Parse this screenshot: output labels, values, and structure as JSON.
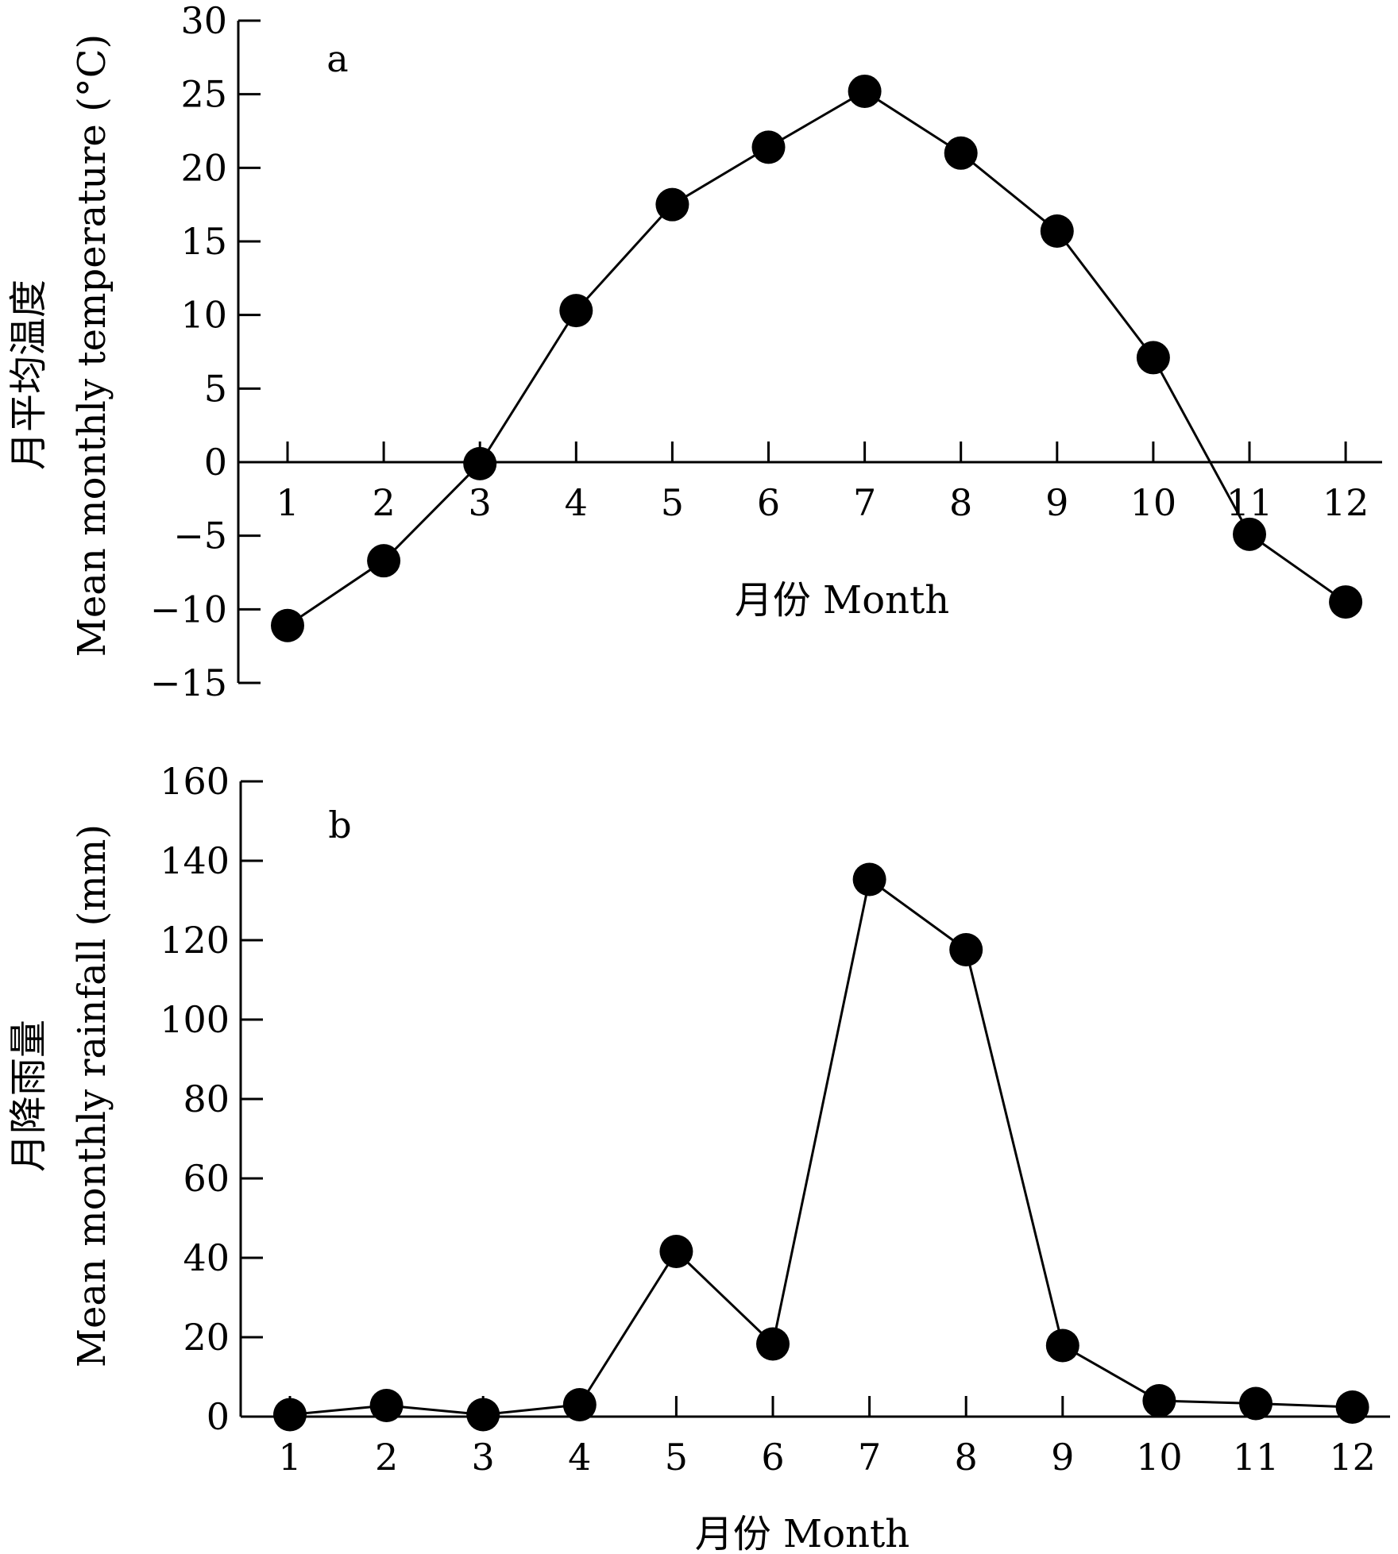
{
  "chart_data": [
    {
      "type": "line",
      "panel_label": "a",
      "categories": [
        "1",
        "2",
        "3",
        "4",
        "5",
        "6",
        "7",
        "8",
        "9",
        "10",
        "11",
        "12"
      ],
      "x": [
        1,
        2,
        3,
        4,
        5,
        6,
        7,
        8,
        9,
        10,
        11,
        12
      ],
      "values": [
        -11.1,
        -6.7,
        -0.1,
        10.3,
        17.5,
        21.4,
        25.2,
        21.0,
        15.7,
        7.1,
        -4.9,
        -9.5
      ],
      "ylabel_cn": "月平均温度",
      "ylabel": "Mean monthly temperature (°C)",
      "xlabel": "月份 Month",
      "ylim": [
        -15,
        30
      ],
      "yticks": [
        "30",
        "25",
        "20",
        "15",
        "10",
        "5",
        "0",
        "−5",
        "−10",
        "−15"
      ],
      "ytick_values": [
        30,
        25,
        20,
        15,
        10,
        5,
        0,
        -5,
        -10,
        -15
      ],
      "x_axis_at": 0,
      "grid": false,
      "legend": "none",
      "marker": "filled-circle",
      "color": "#000000"
    },
    {
      "type": "line",
      "panel_label": "b",
      "categories": [
        "1",
        "2",
        "3",
        "4",
        "5",
        "6",
        "7",
        "8",
        "9",
        "10",
        "11",
        "12"
      ],
      "x": [
        1,
        2,
        3,
        4,
        5,
        6,
        7,
        8,
        9,
        10,
        11,
        12
      ],
      "values": [
        0.5,
        2.8,
        0.5,
        3.0,
        41.6,
        18.3,
        135.3,
        117.6,
        17.9,
        4.0,
        3.3,
        2.4
      ],
      "ylabel_cn": "月降雨量",
      "ylabel": "Mean monthly rainfall (mm)",
      "xlabel": "月份 Month",
      "ylim": [
        0,
        160
      ],
      "yticks": [
        "160",
        "140",
        "120",
        "100",
        "80",
        "60",
        "40",
        "20",
        "0"
      ],
      "ytick_values": [
        160,
        140,
        120,
        100,
        80,
        60,
        40,
        20,
        0
      ],
      "x_axis_at": 0,
      "grid": false,
      "legend": "none",
      "marker": "filled-circle",
      "color": "#000000"
    }
  ]
}
